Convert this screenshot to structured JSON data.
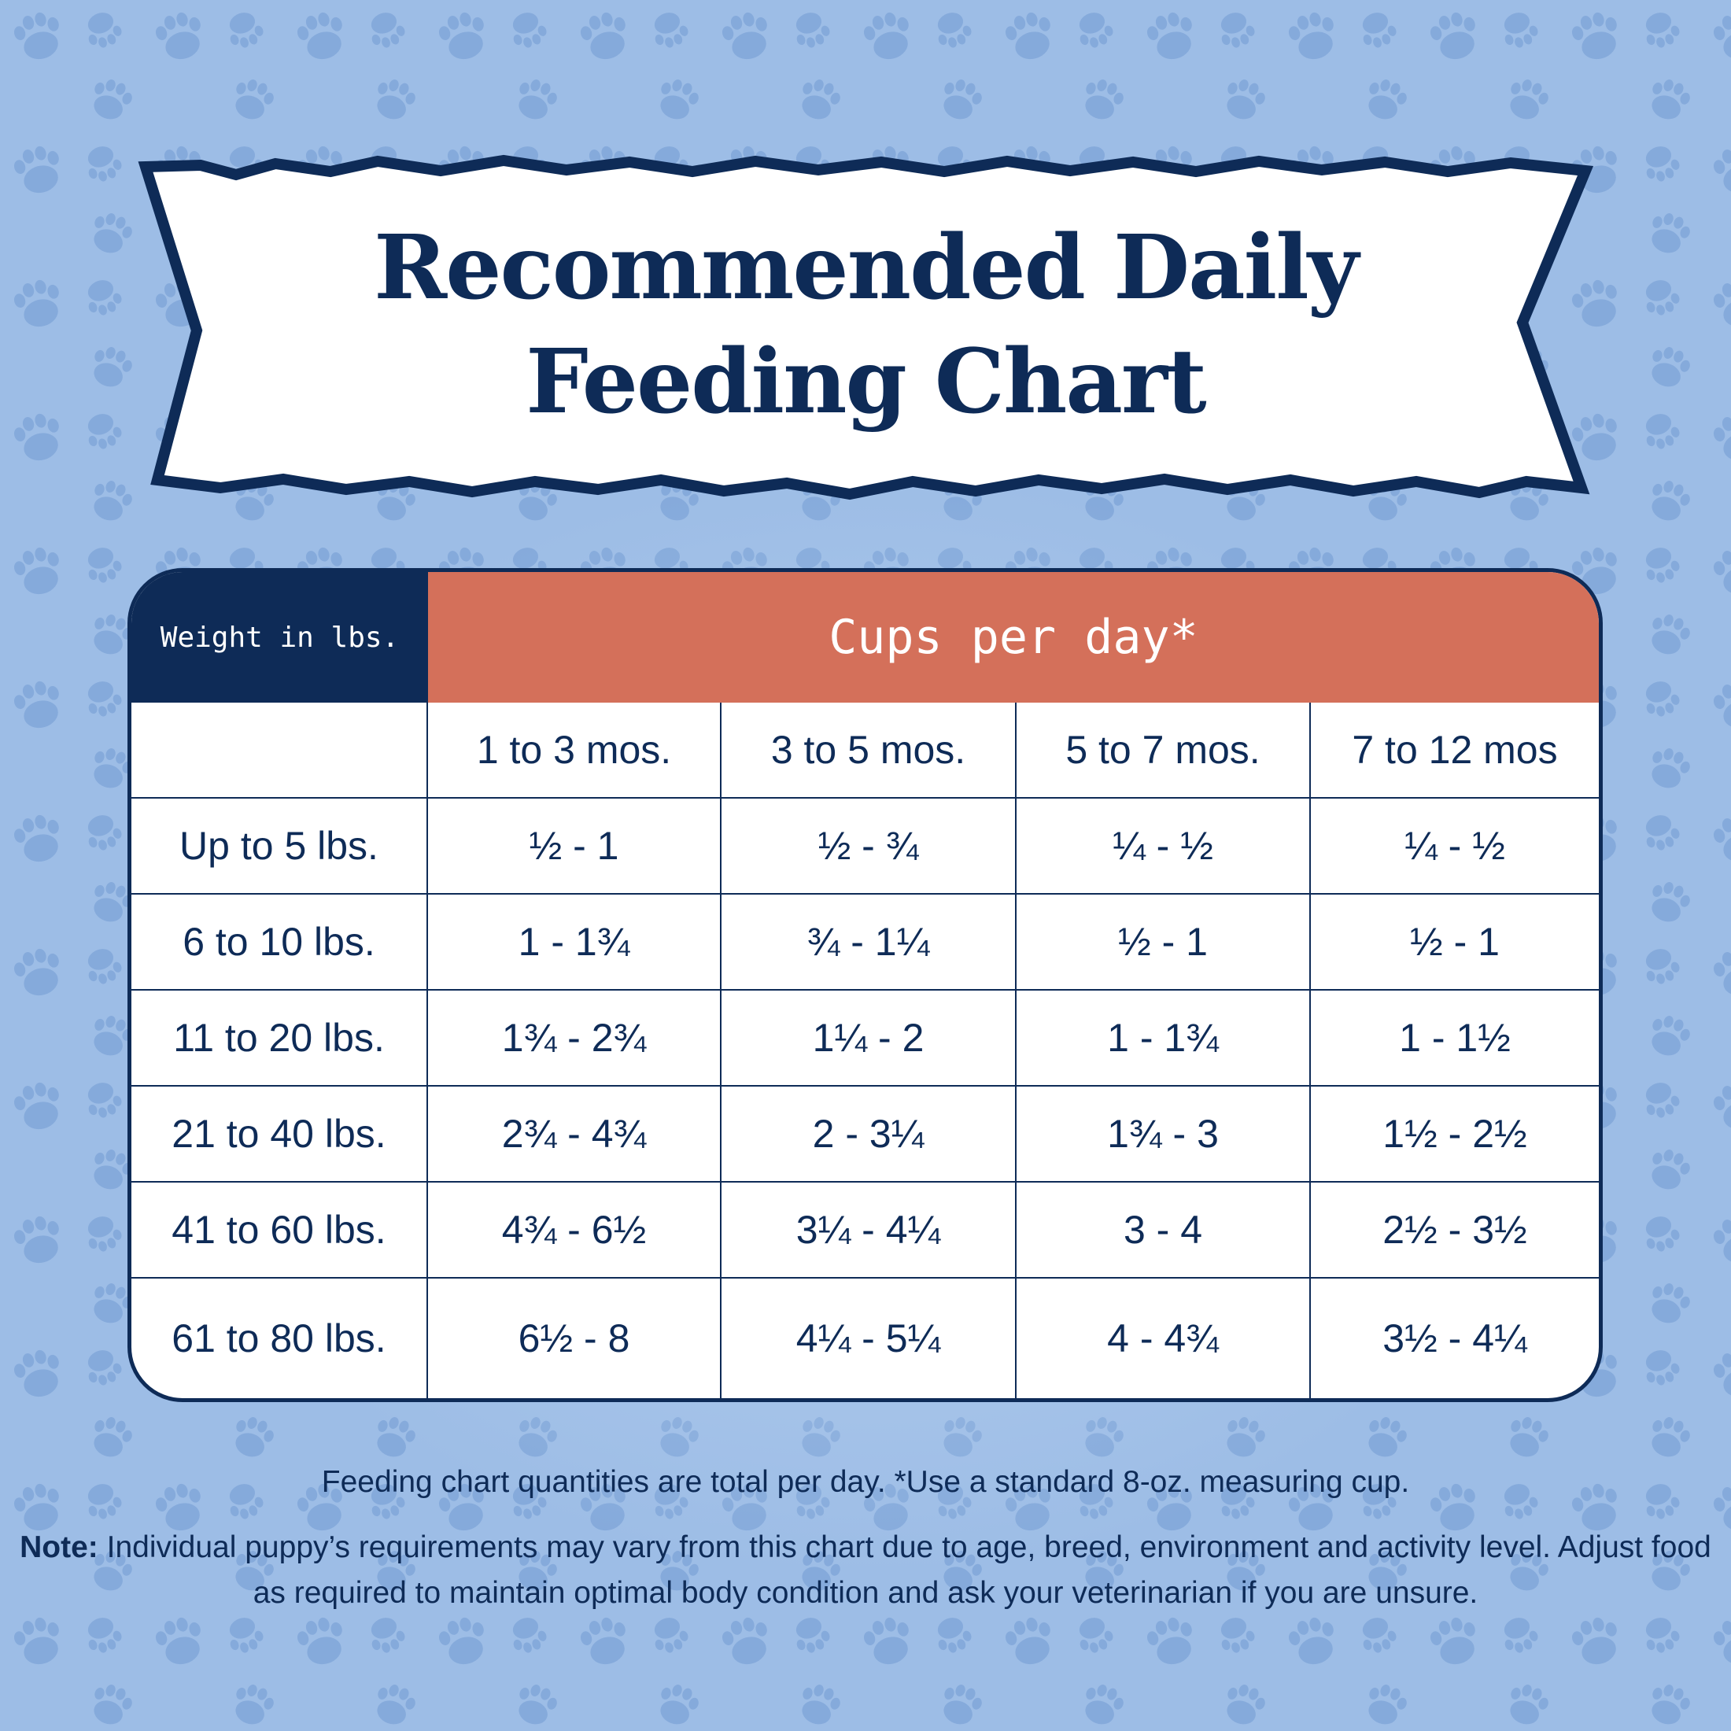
{
  "title": {
    "line1": "Recommended Daily",
    "line2": "Feeding Chart"
  },
  "colors": {
    "background": "#9dbde6",
    "navy": "#0e2b57",
    "header_orange": "#d4705a",
    "paw": "#85aadb"
  },
  "background_icon": "paw-print-icon",
  "chart_data": {
    "type": "table",
    "row_header_label": "Weight in lbs.",
    "column_group_label": "Cups per day*",
    "columns": [
      "1 to 3 mos.",
      "3 to 5 mos.",
      "5 to 7 mos.",
      "7 to 12 mos"
    ],
    "rows": [
      {
        "weight": "Up to 5 lbs.",
        "values": [
          "½ - 1",
          "½ - ¾",
          "¼ - ½",
          "¼ - ½"
        ]
      },
      {
        "weight": "6 to 10 lbs.",
        "values": [
          "1 - 1¾",
          "¾ - 1¼",
          "½ - 1",
          "½ - 1"
        ]
      },
      {
        "weight": "11 to 20 lbs.",
        "values": [
          "1¾ - 2¾",
          "1¼ - 2",
          "1 - 1¾",
          "1 - 1½"
        ]
      },
      {
        "weight": "21 to 40 lbs.",
        "values": [
          "2¾ - 4¾",
          "2 - 3¼",
          "1¾ - 3",
          "1½ - 2½"
        ]
      },
      {
        "weight": "41 to 60 lbs.",
        "values": [
          "4¾ - 6½",
          "3¼ - 4¼",
          "3 - 4",
          "2½ - 3½"
        ]
      },
      {
        "weight": "61 to 80 lbs.",
        "values": [
          "6½ - 8",
          "4¼ - 5¼",
          "4 - 4¾",
          "3½ - 4¼"
        ]
      }
    ]
  },
  "footer": {
    "line1": "Feeding chart quantities are total per day. *Use a standard 8-oz. measuring cup.",
    "note_label": "Note:",
    "note_text": " Individual puppy’s requirements may vary from this chart due to age, breed, environment and activity level. Adjust food as required to maintain optimal body condition and ask  your veterinarian if you are unsure."
  }
}
